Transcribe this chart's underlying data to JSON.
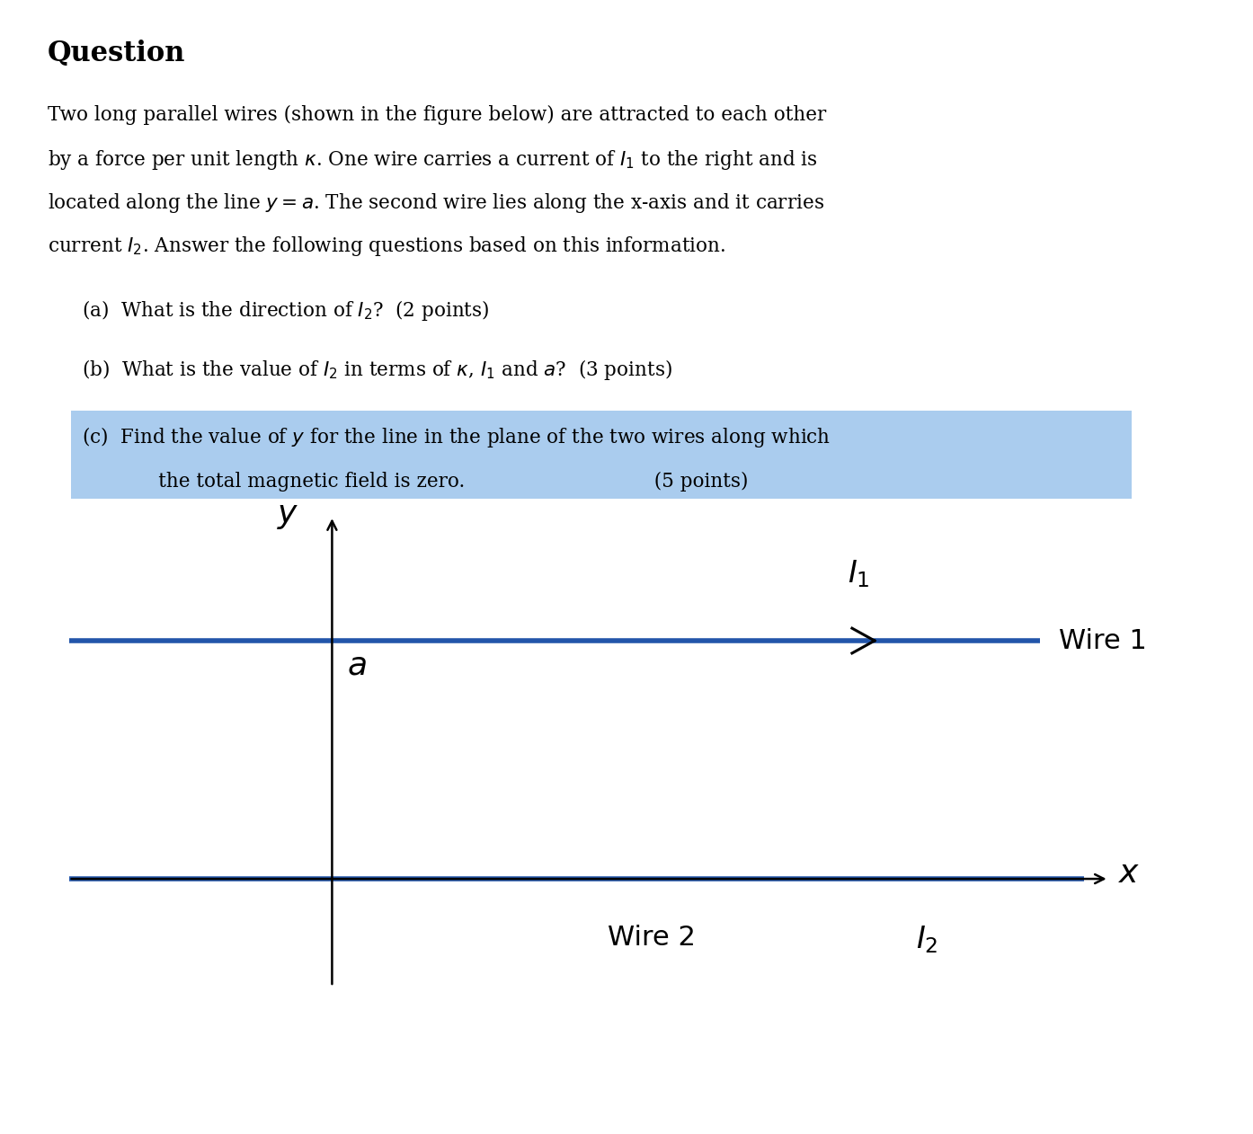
{
  "background_color": "#ffffff",
  "wire_color": "#2255aa",
  "wire_linewidth": 4.0,
  "axis_linewidth": 1.8,
  "figure_width": 13.94,
  "figure_height": 12.62,
  "highlight_color": "#aaccee",
  "text_fontsize": 15.5,
  "title_fontsize": 22,
  "diagram_label_fontsize": 22,
  "diagram_handwriting_fontsize": 24,
  "title_text": "Question",
  "body_line1": "Two long parallel wires (shown in the figure below) are attracted to each other",
  "body_line2": "by a force per unit length $\\kappa$. One wire carries a current of $I_1$ to the right and is",
  "body_line3": "located along the line $y = a$. The second wire lies along the x-axis and it carries",
  "body_line4": "current $I_2$. Answer the following questions based on this information.",
  "qa_text": "(a)  What is the direction of $I_2$?  (2 points)",
  "qb_text": "(b)  What is the value of $I_2$ in terms of $\\kappa$, $I_1$ and $a$?  (3 points)",
  "qc_line1": "(c)  Find the value of $y$ for the line in the plane of the two wires along which",
  "qc_line2_hl": "      the total magnetic field is zero.",
  "qc_suffix": "  (5 points)",
  "wire1_label": "Wire 1",
  "wire2_label": "Wire 2",
  "label_I1": "$\\mathcal{I}_1$",
  "label_I2": "$\\mathcal{I}_2$",
  "label_a": "a",
  "label_y": "y",
  "label_x": "x"
}
